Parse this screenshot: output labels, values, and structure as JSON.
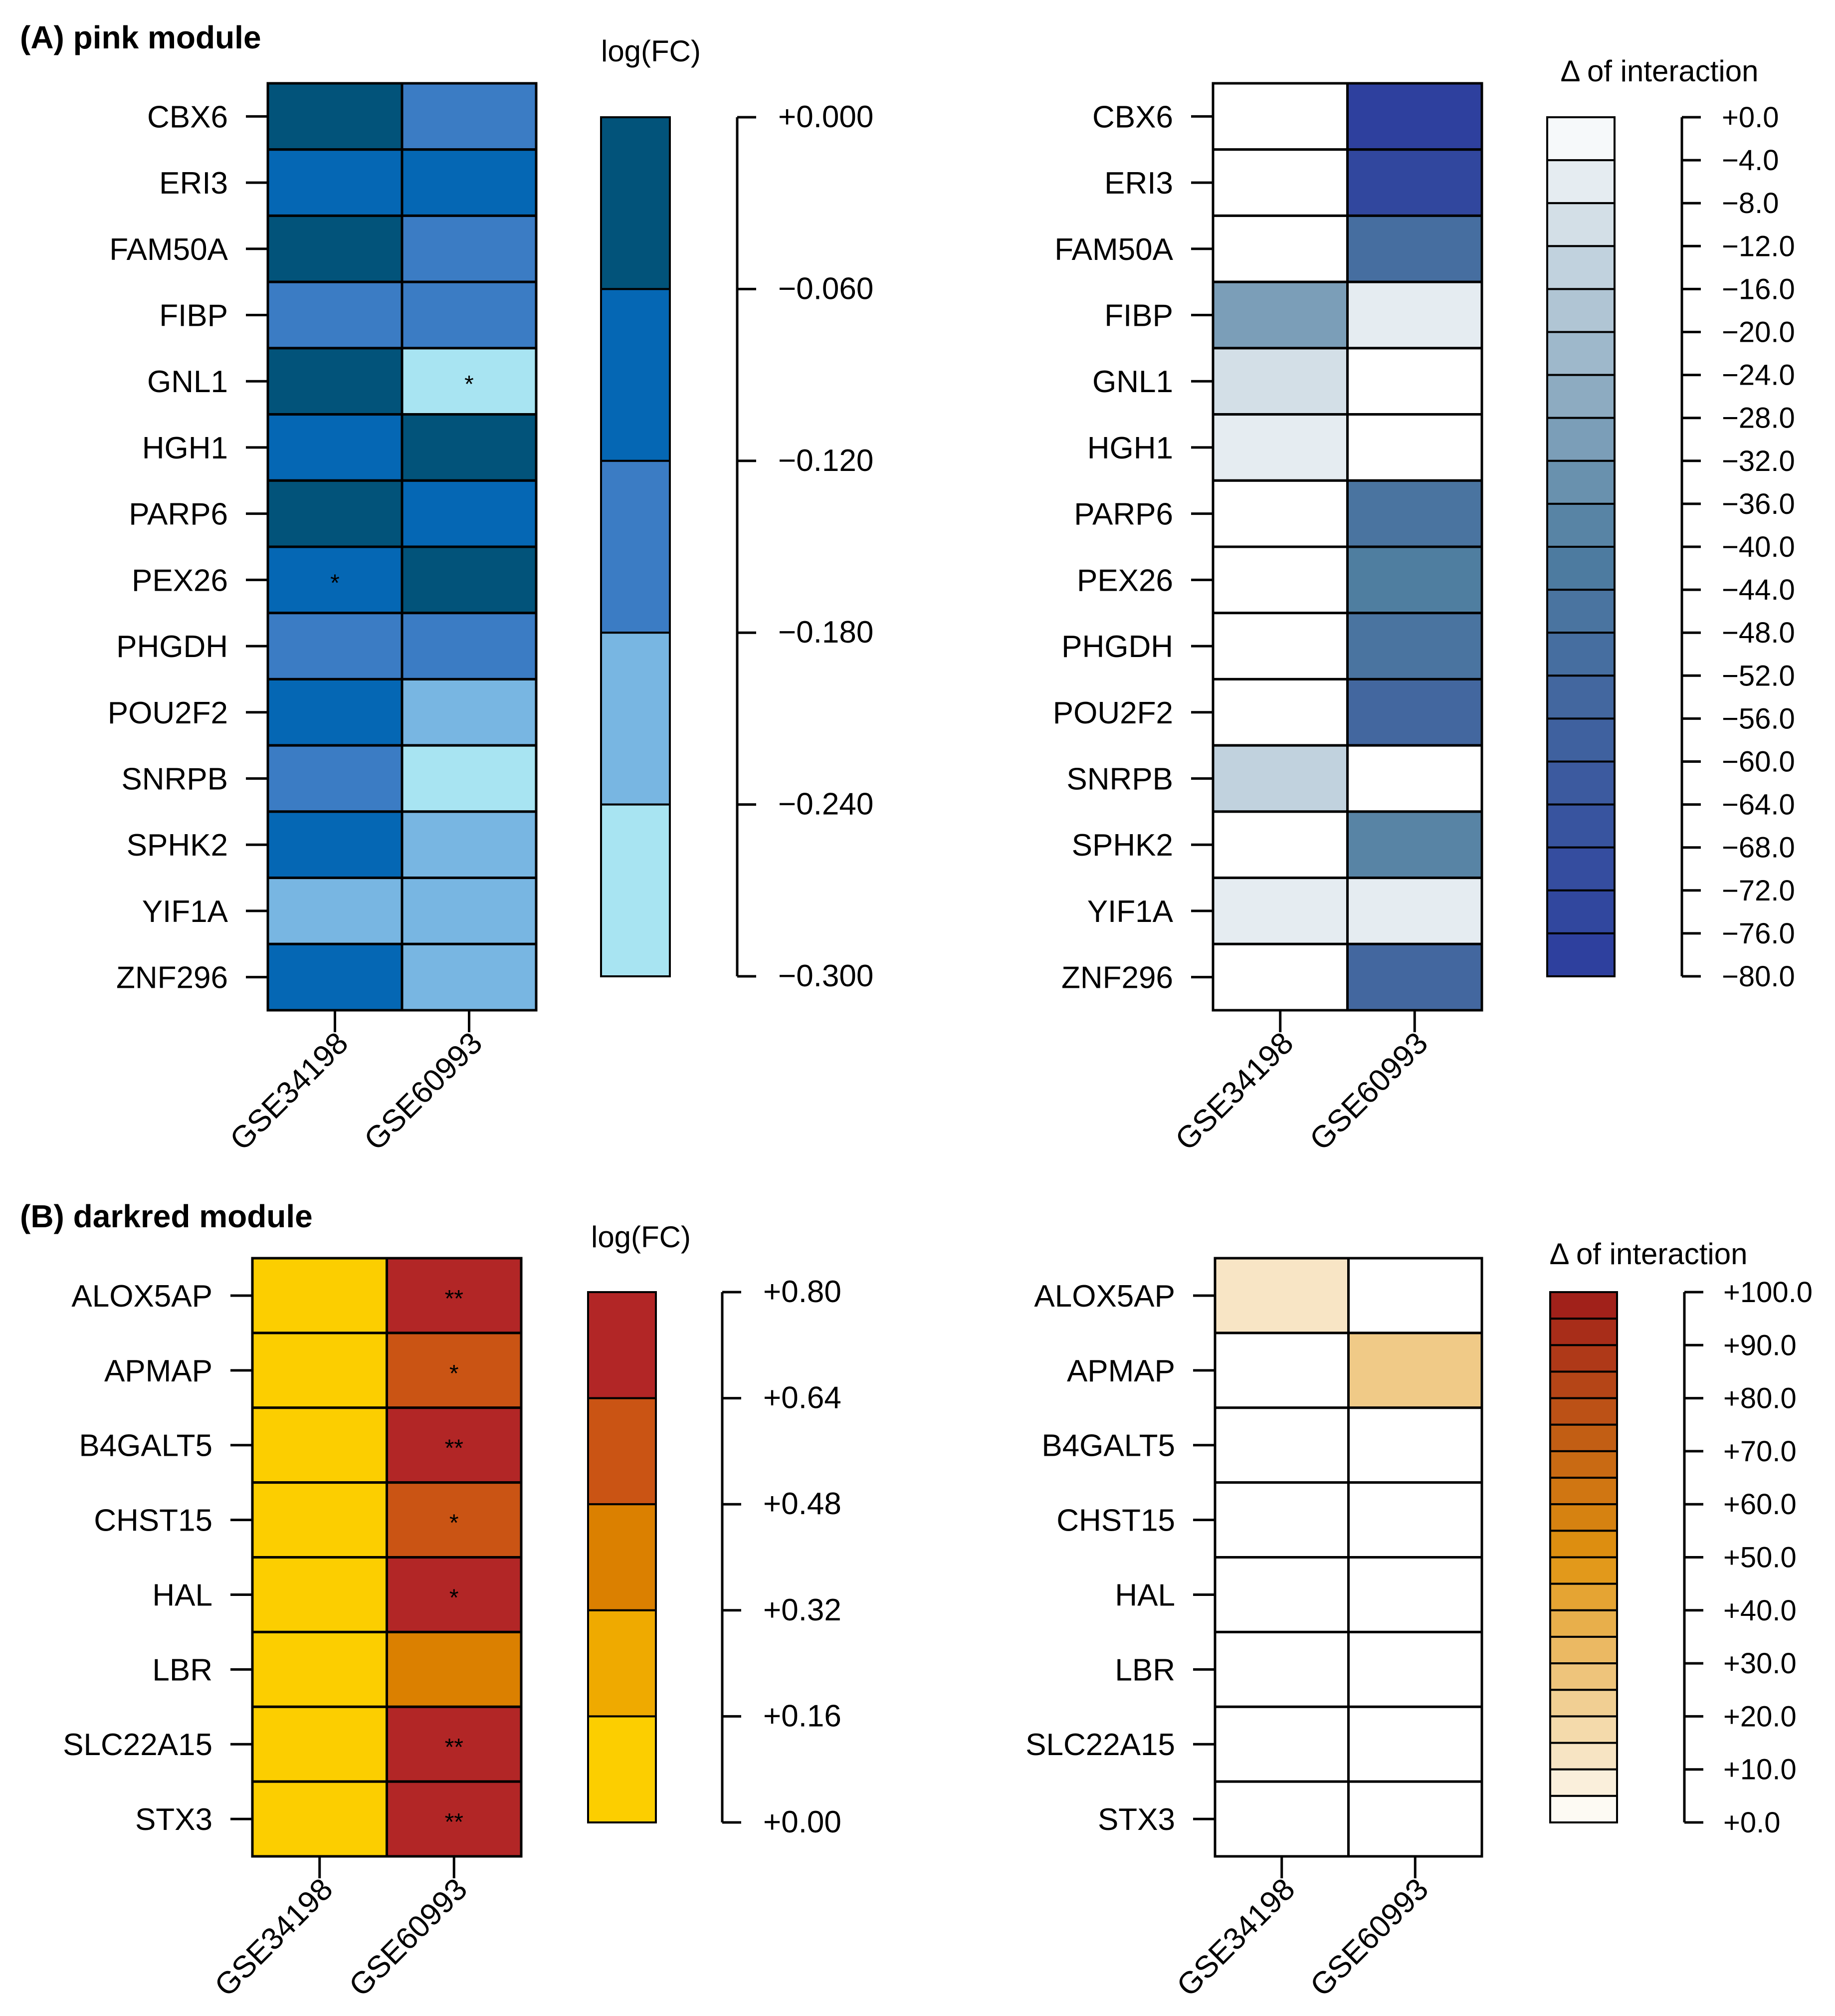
{
  "figure": {
    "panel_a_title": "(A) pink module",
    "panel_b_title": "(B) darkred module"
  },
  "chart_data": [
    {
      "id": "a-fc",
      "type": "heatmap",
      "title": "(A) pink module",
      "legend_title": "log(FC)",
      "rows": [
        "CBX6",
        "ERI3",
        "FAM50A",
        "FIBP",
        "GNL1",
        "HGH1",
        "PARP6",
        "PEX26",
        "PHGDH",
        "POU2F2",
        "SNRPB",
        "SPHK2",
        "YIF1A",
        "ZNF296"
      ],
      "columns": [
        "GSE34198",
        "GSE60993"
      ],
      "values": [
        [
          -0.03,
          -0.15
        ],
        [
          -0.09,
          -0.09
        ],
        [
          -0.03,
          -0.15
        ],
        [
          -0.15,
          -0.15
        ],
        [
          -0.03,
          -0.27
        ],
        [
          -0.09,
          -0.03
        ],
        [
          -0.03,
          -0.09
        ],
        [
          -0.09,
          -0.03
        ],
        [
          -0.15,
          -0.15
        ],
        [
          -0.09,
          -0.21
        ],
        [
          -0.15,
          -0.27
        ],
        [
          -0.09,
          -0.21
        ],
        [
          -0.21,
          -0.21
        ],
        [
          -0.09,
          -0.21
        ]
      ],
      "marks": [
        [
          "",
          ""
        ],
        [
          "",
          ""
        ],
        [
          "",
          ""
        ],
        [
          "",
          ""
        ],
        [
          "",
          "*"
        ],
        [
          "",
          ""
        ],
        [
          "",
          ""
        ],
        [
          "*",
          ""
        ],
        [
          "",
          ""
        ],
        [
          "",
          ""
        ],
        [
          "",
          ""
        ],
        [
          "",
          ""
        ],
        [
          "",
          ""
        ],
        [
          "",
          ""
        ]
      ],
      "palette": [
        "#a8e4f2",
        "#78b6e2",
        "#3b7cc4",
        "#0567b4",
        "#02537a"
      ],
      "range": [
        -0.3,
        0.0
      ],
      "ticks": [
        "+0.000",
        "−0.060",
        "−0.120",
        "−0.180",
        "−0.240",
        "−0.300"
      ]
    },
    {
      "id": "a-int",
      "type": "heatmap",
      "legend_title": "Δ of interaction",
      "rows": [
        "CBX6",
        "ERI3",
        "FAM50A",
        "FIBP",
        "GNL1",
        "HGH1",
        "PARP6",
        "PEX26",
        "PHGDH",
        "POU2F2",
        "SNRPB",
        "SPHK2",
        "YIF1A",
        "ZNF296"
      ],
      "columns": [
        "GSE34198",
        "GSE60993"
      ],
      "values": [
        [
          0,
          -78
        ],
        [
          0,
          -74
        ],
        [
          0,
          -50
        ],
        [
          -30,
          -6
        ],
        [
          -10,
          0
        ],
        [
          -6,
          0
        ],
        [
          0,
          -46
        ],
        [
          0,
          -40
        ],
        [
          0,
          -46
        ],
        [
          0,
          -54
        ],
        [
          -14,
          0
        ],
        [
          0,
          -38
        ],
        [
          -6,
          -6
        ],
        [
          0,
          -54
        ]
      ],
      "range": [
        -80,
        0
      ],
      "color_low": "#2c3d9e",
      "color_mid": "#4f7ea0",
      "color_high": "#ffffff",
      "ticks": [
        "+0.0",
        "−4.0",
        "−8.0",
        "−12.0",
        "−16.0",
        "−20.0",
        "−24.0",
        "−28.0",
        "−32.0",
        "−36.0",
        "−40.0",
        "−44.0",
        "−48.0",
        "−52.0",
        "−56.0",
        "−60.0",
        "−64.0",
        "−68.0",
        "−72.0",
        "−76.0",
        "−80.0"
      ]
    },
    {
      "id": "b-fc",
      "type": "heatmap",
      "title": "(B) darkred module",
      "legend_title": "log(FC)",
      "rows": [
        "ALOX5AP",
        "APMAP",
        "B4GALT5",
        "CHST15",
        "HAL",
        "LBR",
        "SLC22A15",
        "STX3"
      ],
      "columns": [
        "GSE34198",
        "GSE60993"
      ],
      "values": [
        [
          0.08,
          0.72
        ],
        [
          0.08,
          0.56
        ],
        [
          0.08,
          0.72
        ],
        [
          0.08,
          0.56
        ],
        [
          0.08,
          0.72
        ],
        [
          0.08,
          0.4
        ],
        [
          0.08,
          0.72
        ],
        [
          0.08,
          0.72
        ]
      ],
      "marks": [
        [
          "",
          "**"
        ],
        [
          "",
          "*"
        ],
        [
          "",
          "**"
        ],
        [
          "",
          "*"
        ],
        [
          "",
          "*"
        ],
        [
          "",
          ""
        ],
        [
          "",
          "**"
        ],
        [
          "",
          "**"
        ]
      ],
      "palette": [
        "#fcce00",
        "#efaa00",
        "#db8000",
        "#ca5414",
        "#b22626"
      ],
      "range": [
        0,
        0.8
      ],
      "ticks": [
        "+0.80",
        "+0.64",
        "+0.48",
        "+0.32",
        "+0.16",
        "+0.00"
      ]
    },
    {
      "id": "b-int",
      "type": "heatmap",
      "legend_title": "Δ of interaction",
      "rows": [
        "ALOX5AP",
        "APMAP",
        "B4GALT5",
        "CHST15",
        "HAL",
        "LBR",
        "SLC22A15",
        "STX3"
      ],
      "columns": [
        "GSE34198",
        "GSE60993"
      ],
      "values": [
        [
          12,
          0
        ],
        [
          0,
          25
        ],
        [
          0,
          0
        ],
        [
          0,
          0
        ],
        [
          0,
          0
        ],
        [
          0,
          0
        ],
        [
          0,
          0
        ],
        [
          0,
          0
        ]
      ],
      "range": [
        0,
        100
      ],
      "color_low": "#ffffff",
      "color_mid": "#e0940f",
      "color_high": "#9e1b1b",
      "ticks": [
        "+100.0",
        "+90.0",
        "+80.0",
        "+70.0",
        "+60.0",
        "+50.0",
        "+40.0",
        "+30.0",
        "+20.0",
        "+10.0",
        "+0.0"
      ]
    }
  ]
}
